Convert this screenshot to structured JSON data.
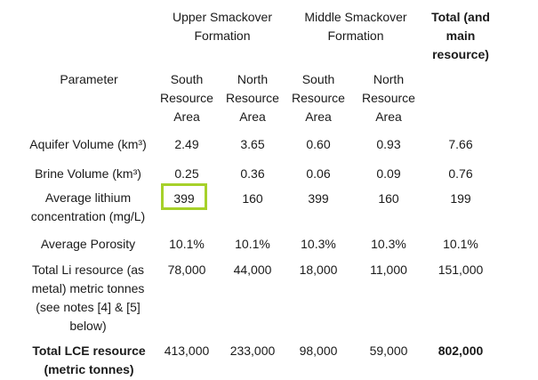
{
  "header": {
    "upper": "Upper Smackover Formation",
    "middle": "Middle Smackover Formation",
    "total": "Total (and main resource)",
    "parameter": "Parameter",
    "south_upper": "South Resource Area",
    "north_upper": "North Resource Area",
    "south_middle": "South Resource Area",
    "north_middle": "North Resource Area"
  },
  "rows": [
    {
      "label": "Aquifer Volume (km³)",
      "values": [
        "2.49",
        "3.65",
        "0.60",
        "0.93",
        "7.66"
      ]
    },
    {
      "label": "Brine Volume (km³)",
      "values": [
        "0.25",
        "0.36",
        "0.06",
        "0.09",
        "0.76"
      ]
    },
    {
      "label": "Average lithium concentration (mg/L)",
      "values": [
        "399",
        "160",
        "399",
        "160",
        "199"
      ]
    },
    {
      "label": "Average Porosity",
      "values": [
        "10.1%",
        "10.1%",
        "10.3%",
        "10.3%",
        "10.1%"
      ]
    },
    {
      "label": "Total Li resource (as metal) metric tonnes (see notes [4] & [5] below)",
      "values": [
        "78,000",
        "44,000",
        "18,000",
        "11,000",
        "151,000"
      ]
    },
    {
      "label": "Total LCE resource (metric tonnes)",
      "values": [
        "413,000",
        "233,000",
        "98,000",
        "59,000",
        "802,000"
      ]
    }
  ],
  "highlight_color": "#a6d12a"
}
